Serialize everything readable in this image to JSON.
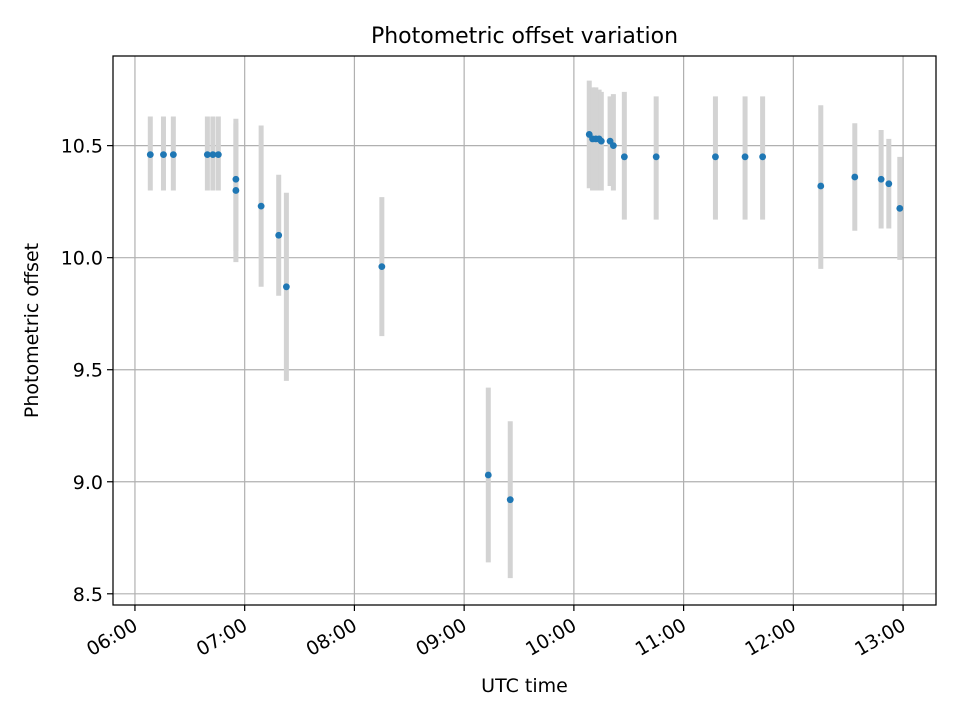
{
  "chart_data": {
    "type": "scatter",
    "title": "Photometric offset variation",
    "xlabel": "UTC time",
    "ylabel": "Photometric offset",
    "x_unit": "hour",
    "xlim": [
      5.8,
      13.3
    ],
    "ylim": [
      8.45,
      10.9
    ],
    "x_ticks": [
      {
        "value": 6,
        "label": "06:00"
      },
      {
        "value": 7,
        "label": "07:00"
      },
      {
        "value": 8,
        "label": "08:00"
      },
      {
        "value": 9,
        "label": "09:00"
      },
      {
        "value": 10,
        "label": "10:00"
      },
      {
        "value": 11,
        "label": "11:00"
      },
      {
        "value": 12,
        "label": "12:00"
      },
      {
        "value": 13,
        "label": "13:00"
      }
    ],
    "y_ticks": [
      {
        "value": 8.5,
        "label": "8.5"
      },
      {
        "value": 9.0,
        "label": "9.0"
      },
      {
        "value": 9.5,
        "label": "9.5"
      },
      {
        "value": 10.0,
        "label": "10.0"
      },
      {
        "value": 10.5,
        "label": "10.5"
      }
    ],
    "grid": true,
    "colors": {
      "point": "#1f77b4",
      "errorbar": "#d3d3d3",
      "grid": "#b0b0b0",
      "axes": "#000000"
    },
    "points": [
      {
        "x": 6.14,
        "y": 10.46,
        "low": 10.3,
        "high": 10.63
      },
      {
        "x": 6.26,
        "y": 10.46,
        "low": 10.3,
        "high": 10.63
      },
      {
        "x": 6.35,
        "y": 10.46,
        "low": 10.3,
        "high": 10.63
      },
      {
        "x": 6.66,
        "y": 10.46,
        "low": 10.3,
        "high": 10.63
      },
      {
        "x": 6.71,
        "y": 10.46,
        "low": 10.3,
        "high": 10.63
      },
      {
        "x": 6.76,
        "y": 10.46,
        "low": 10.3,
        "high": 10.63
      },
      {
        "x": 6.92,
        "y": 10.35,
        "low": 10.03,
        "high": 10.62
      },
      {
        "x": 6.92,
        "y": 10.3,
        "low": 9.98,
        "high": 10.6
      },
      {
        "x": 7.15,
        "y": 10.23,
        "low": 9.87,
        "high": 10.59
      },
      {
        "x": 7.31,
        "y": 10.1,
        "low": 9.83,
        "high": 10.37
      },
      {
        "x": 7.38,
        "y": 9.87,
        "low": 9.45,
        "high": 10.29
      },
      {
        "x": 8.25,
        "y": 9.96,
        "low": 9.65,
        "high": 10.27
      },
      {
        "x": 9.22,
        "y": 9.03,
        "low": 8.64,
        "high": 9.42
      },
      {
        "x": 9.42,
        "y": 8.92,
        "low": 8.57,
        "high": 9.27
      },
      {
        "x": 10.14,
        "y": 10.55,
        "low": 10.31,
        "high": 10.79
      },
      {
        "x": 10.17,
        "y": 10.53,
        "low": 10.3,
        "high": 10.76
      },
      {
        "x": 10.2,
        "y": 10.53,
        "low": 10.3,
        "high": 10.76
      },
      {
        "x": 10.23,
        "y": 10.53,
        "low": 10.3,
        "high": 10.75
      },
      {
        "x": 10.25,
        "y": 10.52,
        "low": 10.3,
        "high": 10.74
      },
      {
        "x": 10.33,
        "y": 10.52,
        "low": 10.32,
        "high": 10.72
      },
      {
        "x": 10.36,
        "y": 10.5,
        "low": 10.3,
        "high": 10.73
      },
      {
        "x": 10.46,
        "y": 10.45,
        "low": 10.17,
        "high": 10.74
      },
      {
        "x": 10.75,
        "y": 10.45,
        "low": 10.17,
        "high": 10.72
      },
      {
        "x": 11.29,
        "y": 10.45,
        "low": 10.17,
        "high": 10.72
      },
      {
        "x": 11.56,
        "y": 10.45,
        "low": 10.17,
        "high": 10.72
      },
      {
        "x": 11.72,
        "y": 10.45,
        "low": 10.17,
        "high": 10.72
      },
      {
        "x": 12.25,
        "y": 10.32,
        "low": 9.95,
        "high": 10.68
      },
      {
        "x": 12.56,
        "y": 10.36,
        "low": 10.12,
        "high": 10.6
      },
      {
        "x": 12.8,
        "y": 10.35,
        "low": 10.13,
        "high": 10.57
      },
      {
        "x": 12.87,
        "y": 10.33,
        "low": 10.13,
        "high": 10.53
      },
      {
        "x": 12.97,
        "y": 10.22,
        "low": 9.99,
        "high": 10.45
      }
    ]
  }
}
